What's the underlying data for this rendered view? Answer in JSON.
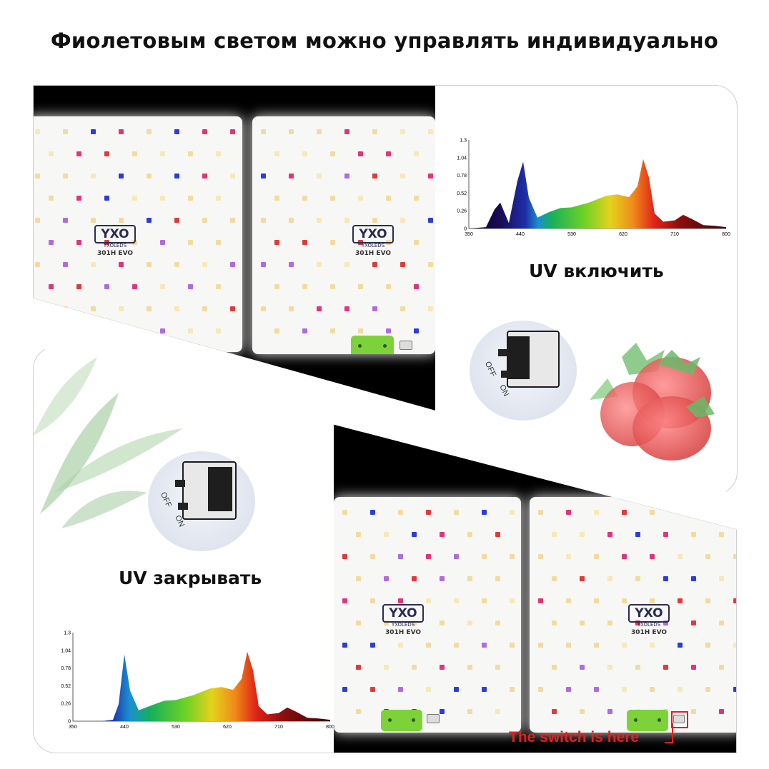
{
  "headline": "Фиолетовым светом можно управлять индивидуально",
  "top_panel": {
    "uv_on_label": "UV включить",
    "switch_off": "OFF",
    "switch_on": "ON"
  },
  "bottom_panel": {
    "uv_off_label": "UV закрывать",
    "switch_off": "OFF",
    "switch_on": "ON",
    "switch_note": "The switch is here"
  },
  "board": {
    "logo": "YXO",
    "brand": "YXOLEDS",
    "model": "301H EVO"
  },
  "chart_data": [
    {
      "type": "area",
      "title": "",
      "x_ticks": [
        350,
        440,
        530,
        620,
        710,
        800
      ],
      "y_ticks": [
        0,
        0.26,
        0.52,
        0.78,
        1.04,
        1.3
      ],
      "xlim": [
        350,
        800
      ],
      "ylim": [
        0,
        1.3
      ],
      "x": [
        350,
        380,
        395,
        405,
        420,
        435,
        445,
        455,
        470,
        490,
        510,
        530,
        560,
        590,
        610,
        630,
        645,
        655,
        665,
        675,
        690,
        710,
        725,
        740,
        760,
        780,
        800
      ],
      "y": [
        0,
        0.02,
        0.28,
        0.38,
        0.08,
        0.7,
        0.98,
        0.45,
        0.16,
        0.24,
        0.3,
        0.31,
        0.38,
        0.48,
        0.5,
        0.46,
        0.62,
        1.02,
        0.75,
        0.22,
        0.1,
        0.12,
        0.2,
        0.14,
        0.05,
        0.04,
        0.02
      ]
    },
    {
      "type": "area",
      "title": "",
      "x_ticks": [
        350,
        440,
        530,
        620,
        710,
        800
      ],
      "y_ticks": [
        0,
        0.26,
        0.52,
        0.78,
        1.04,
        1.3
      ],
      "xlim": [
        350,
        800
      ],
      "ylim": [
        0,
        1.3
      ],
      "x": [
        350,
        400,
        420,
        430,
        440,
        450,
        465,
        490,
        510,
        530,
        560,
        590,
        610,
        630,
        645,
        655,
        665,
        675,
        690,
        710,
        725,
        740,
        760,
        780,
        800
      ],
      "y": [
        0,
        0,
        0.02,
        0.25,
        0.98,
        0.45,
        0.16,
        0.24,
        0.3,
        0.31,
        0.38,
        0.48,
        0.5,
        0.46,
        0.62,
        1.02,
        0.75,
        0.22,
        0.1,
        0.12,
        0.2,
        0.14,
        0.05,
        0.04,
        0.02
      ]
    }
  ]
}
